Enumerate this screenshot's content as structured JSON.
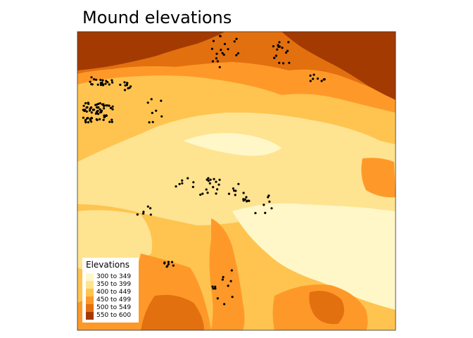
{
  "map": {
    "title": "Mound elevations",
    "legend": {
      "title": "Elevations",
      "classes": [
        {
          "label": "300 to 349",
          "color": "#fff7c8"
        },
        {
          "label": "350 to 399",
          "color": "#fee391"
        },
        {
          "label": "400 to 449",
          "color": "#fec44f"
        },
        {
          "label": "450 to 499",
          "color": "#fe9929"
        },
        {
          "label": "500 to 549",
          "color": "#e3700f"
        },
        {
          "label": "550 to 600",
          "color": "#a33a02"
        }
      ]
    },
    "colors": {
      "frame": "#333333",
      "mound_points": "#000000"
    }
  }
}
